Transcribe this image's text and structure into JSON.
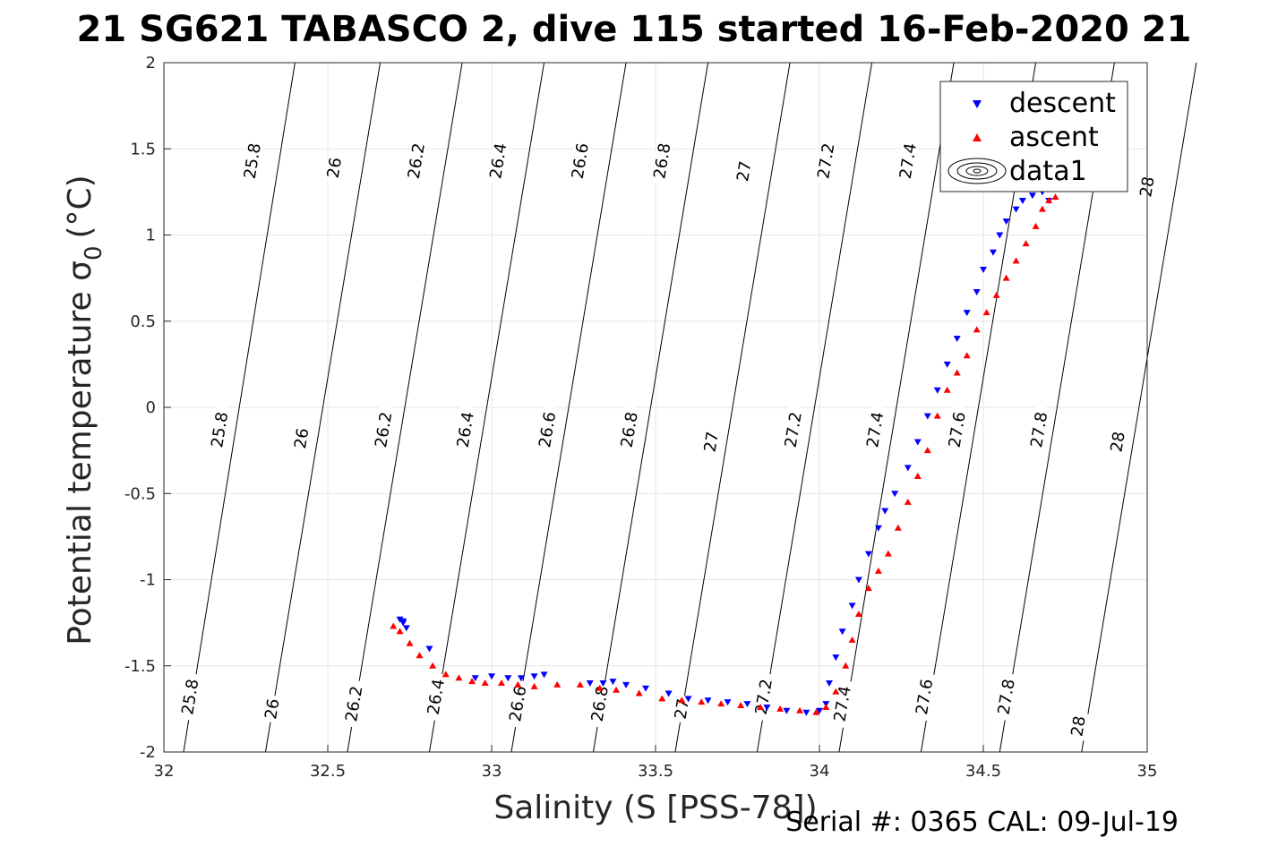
{
  "chart_data": {
    "type": "scatter",
    "title": "21 SG621 TABASCO 2, dive 115 started 16-Feb-2020 21",
    "xlabel": "Salinity (S [PSS-78])",
    "ylabel_main": "Potential temperature σ",
    "ylabel_sub": "0",
    "ylabel_unit": "(°C)",
    "xlim": [
      32,
      35
    ],
    "ylim": [
      -2,
      2
    ],
    "xticks": [
      "32",
      "32.5",
      "33",
      "33.5",
      "34",
      "34.5",
      "35"
    ],
    "yticks": [
      "-2",
      "-1.5",
      "-1",
      "-0.5",
      "0",
      "0.5",
      "1",
      "1.5",
      "2"
    ],
    "grid": true,
    "legend_position": "top-right",
    "legend": [
      "descent",
      "ascent",
      "data1"
    ],
    "colors": {
      "descent": "#0000ff",
      "ascent": "#ff0000",
      "contour": "#000000",
      "grid": "#e6e6e6"
    },
    "footer": "Serial #: 0365  CAL: 09-Jul-19",
    "contours": [
      {
        "level": "25.8",
        "line": [
          [
            32.06,
            -2
          ],
          [
            32.4,
            2
          ]
        ],
        "labels": [
          [
            32.08,
            -1.68
          ],
          [
            32.17,
            -0.13
          ],
          [
            32.27,
            1.43
          ]
        ]
      },
      {
        "level": "26",
        "line": [
          [
            32.31,
            -2
          ],
          [
            32.66,
            2
          ]
        ],
        "labels": [
          [
            32.33,
            -1.75
          ],
          [
            32.42,
            -0.18
          ],
          [
            32.52,
            1.39
          ]
        ]
      },
      {
        "level": "26.2",
        "line": [
          [
            32.56,
            -2
          ],
          [
            32.91,
            2
          ]
        ],
        "labels": [
          [
            32.58,
            -1.72
          ],
          [
            32.67,
            -0.13
          ],
          [
            32.77,
            1.43
          ]
        ]
      },
      {
        "level": "26.4",
        "line": [
          [
            32.81,
            -2
          ],
          [
            33.16,
            2
          ]
        ],
        "labels": [
          [
            32.83,
            -1.68
          ],
          [
            32.92,
            -0.13
          ],
          [
            33.02,
            1.43
          ]
        ]
      },
      {
        "level": "26.6",
        "line": [
          [
            33.06,
            -2
          ],
          [
            33.41,
            2
          ]
        ],
        "labels": [
          [
            33.08,
            -1.72
          ],
          [
            33.17,
            -0.13
          ],
          [
            33.27,
            1.43
          ]
        ]
      },
      {
        "level": "26.8",
        "line": [
          [
            33.31,
            -2
          ],
          [
            33.66,
            2
          ]
        ],
        "labels": [
          [
            33.33,
            -1.72
          ],
          [
            33.42,
            -0.13
          ],
          [
            33.52,
            1.43
          ]
        ]
      },
      {
        "level": "27",
        "line": [
          [
            33.56,
            -2
          ],
          [
            33.91,
            2
          ]
        ],
        "labels": [
          [
            33.58,
            -1.75
          ],
          [
            33.67,
            -0.2
          ],
          [
            33.77,
            1.37
          ]
        ]
      },
      {
        "level": "27.2",
        "line": [
          [
            33.81,
            -2
          ],
          [
            34.16,
            2
          ]
        ],
        "labels": [
          [
            33.83,
            -1.68
          ],
          [
            33.92,
            -0.13
          ],
          [
            34.02,
            1.43
          ]
        ]
      },
      {
        "level": "27.4",
        "line": [
          [
            34.06,
            -2
          ],
          [
            34.41,
            2
          ]
        ],
        "labels": [
          [
            34.07,
            -1.72
          ],
          [
            34.17,
            -0.13
          ],
          [
            34.27,
            1.43
          ]
        ]
      },
      {
        "level": "27.6",
        "line": [
          [
            34.31,
            -2
          ],
          [
            34.66,
            2
          ]
        ],
        "labels": [
          [
            34.32,
            -1.68
          ],
          [
            34.42,
            -0.13
          ]
        ]
      },
      {
        "level": "27.8",
        "line": [
          [
            34.55,
            -2
          ],
          [
            34.9,
            2
          ]
        ],
        "labels": [
          [
            34.57,
            -1.68
          ],
          [
            34.67,
            -0.13
          ]
        ]
      },
      {
        "level": "28",
        "line": [
          [
            34.8,
            -2
          ],
          [
            35.15,
            2
          ]
        ],
        "labels": [
          [
            34.79,
            -1.85
          ],
          [
            34.91,
            -0.2
          ],
          [
            35.0,
            1.28
          ]
        ]
      }
    ],
    "series": [
      {
        "name": "descent",
        "marker": "triangle-down",
        "x": [
          32.72,
          32.73,
          32.74,
          32.73,
          32.81,
          32.95,
          33.0,
          33.05,
          33.09,
          33.13,
          33.16,
          33.3,
          33.34,
          33.37,
          33.41,
          33.47,
          33.54,
          33.6,
          33.66,
          33.72,
          33.78,
          33.84,
          33.9,
          33.96,
          34.0,
          34.02,
          34.03,
          34.05,
          34.07,
          34.1,
          34.12,
          34.15,
          34.18,
          34.2,
          34.23,
          34.27,
          34.3,
          34.33,
          34.36,
          34.39,
          34.42,
          34.45,
          34.48,
          34.5,
          34.53,
          34.55,
          34.57,
          34.6,
          34.62,
          34.65,
          34.68,
          34.7
        ],
        "y": [
          -1.23,
          -1.25,
          -1.28,
          -1.24,
          -1.4,
          -1.57,
          -1.56,
          -1.57,
          -1.57,
          -1.56,
          -1.55,
          -1.6,
          -1.6,
          -1.59,
          -1.61,
          -1.63,
          -1.66,
          -1.69,
          -1.7,
          -1.71,
          -1.72,
          -1.74,
          -1.76,
          -1.77,
          -1.76,
          -1.72,
          -1.6,
          -1.45,
          -1.3,
          -1.15,
          -1.0,
          -0.85,
          -0.7,
          -0.6,
          -0.5,
          -0.35,
          -0.2,
          -0.05,
          0.1,
          0.25,
          0.4,
          0.55,
          0.67,
          0.8,
          0.9,
          1.0,
          1.08,
          1.15,
          1.2,
          1.23,
          1.25,
          1.2
        ]
      },
      {
        "name": "ascent",
        "marker": "triangle-up",
        "x": [
          32.7,
          32.72,
          32.75,
          32.78,
          32.82,
          32.86,
          32.9,
          32.94,
          32.98,
          33.03,
          33.08,
          33.13,
          33.2,
          33.27,
          33.33,
          33.38,
          33.45,
          33.52,
          33.58,
          33.64,
          33.7,
          33.76,
          33.82,
          33.88,
          33.94,
          33.99,
          34.02,
          34.05,
          34.08,
          34.1,
          34.12,
          34.15,
          34.18,
          34.21,
          34.24,
          34.27,
          34.3,
          34.33,
          34.36,
          34.39,
          34.42,
          34.45,
          34.48,
          34.51,
          34.54,
          34.57,
          34.6,
          34.63,
          34.66,
          34.68,
          34.7,
          34.72
        ],
        "y": [
          -1.27,
          -1.3,
          -1.37,
          -1.44,
          -1.5,
          -1.55,
          -1.57,
          -1.59,
          -1.6,
          -1.6,
          -1.61,
          -1.62,
          -1.61,
          -1.61,
          -1.63,
          -1.64,
          -1.66,
          -1.69,
          -1.7,
          -1.71,
          -1.72,
          -1.73,
          -1.74,
          -1.75,
          -1.76,
          -1.77,
          -1.74,
          -1.65,
          -1.5,
          -1.35,
          -1.2,
          -1.05,
          -0.95,
          -0.85,
          -0.7,
          -0.55,
          -0.4,
          -0.25,
          -0.05,
          0.1,
          0.2,
          0.3,
          0.45,
          0.55,
          0.65,
          0.75,
          0.85,
          0.95,
          1.05,
          1.15,
          1.2,
          1.22
        ]
      }
    ]
  }
}
